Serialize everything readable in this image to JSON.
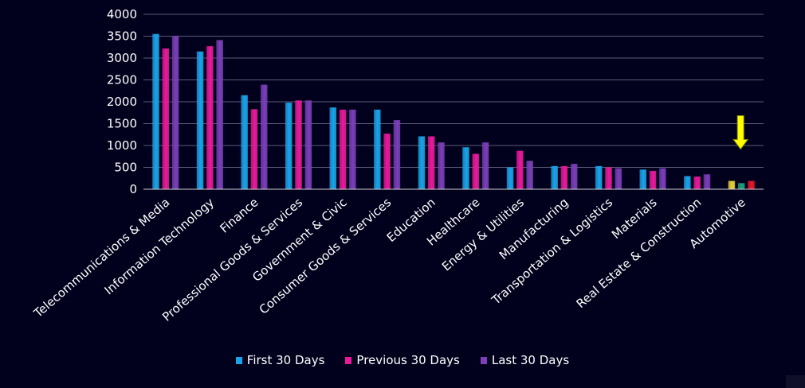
{
  "colors": {
    "first": "#1aa3e8",
    "previous": "#e81a9b",
    "last": "#7b3fb8",
    "grid": "#5a5a78",
    "axis_text": "#ffffff",
    "arrow": "#ffff00",
    "automotive": [
      "#e8d23a",
      "#1aa37a",
      "#e81a2a"
    ]
  },
  "chart_data": {
    "type": "bar",
    "ylim": [
      0,
      4000
    ],
    "yticks": [
      "0",
      "500",
      "1000",
      "1500",
      "2000",
      "2500",
      "3000",
      "3500",
      "4000"
    ],
    "grid": true,
    "legend_position": "bottom",
    "categories": [
      "Telecommunications & Media",
      "Information Technology",
      "Finance",
      "Professional Goods & Services",
      "Government & Civic",
      "Consumer Goods &  Services",
      "Education",
      "Healthcare",
      "Energy & Utilities",
      "Manufacturing",
      "Transportation & Logistics",
      "Materials",
      "Real Estate & Construction",
      "Automotive"
    ],
    "series": [
      {
        "name": "First 30 Days",
        "values": [
          3550,
          3150,
          2150,
          1980,
          1870,
          1820,
          1210,
          960,
          500,
          530,
          530,
          450,
          300,
          190
        ]
      },
      {
        "name": "Previous 30 Days",
        "values": [
          3220,
          3270,
          1830,
          2030,
          1820,
          1270,
          1210,
          810,
          880,
          530,
          500,
          420,
          290,
          140
        ]
      },
      {
        "name": "Last 30 Days",
        "values": [
          3500,
          3410,
          2390,
          2030,
          1820,
          1580,
          1070,
          1070,
          650,
          580,
          480,
          480,
          340,
          190
        ]
      }
    ],
    "annotation": "down-arrow-automotive"
  },
  "legend": {
    "first": "First 30 Days",
    "previous": "Previous 30 Days",
    "last": "Last 30 Days"
  }
}
